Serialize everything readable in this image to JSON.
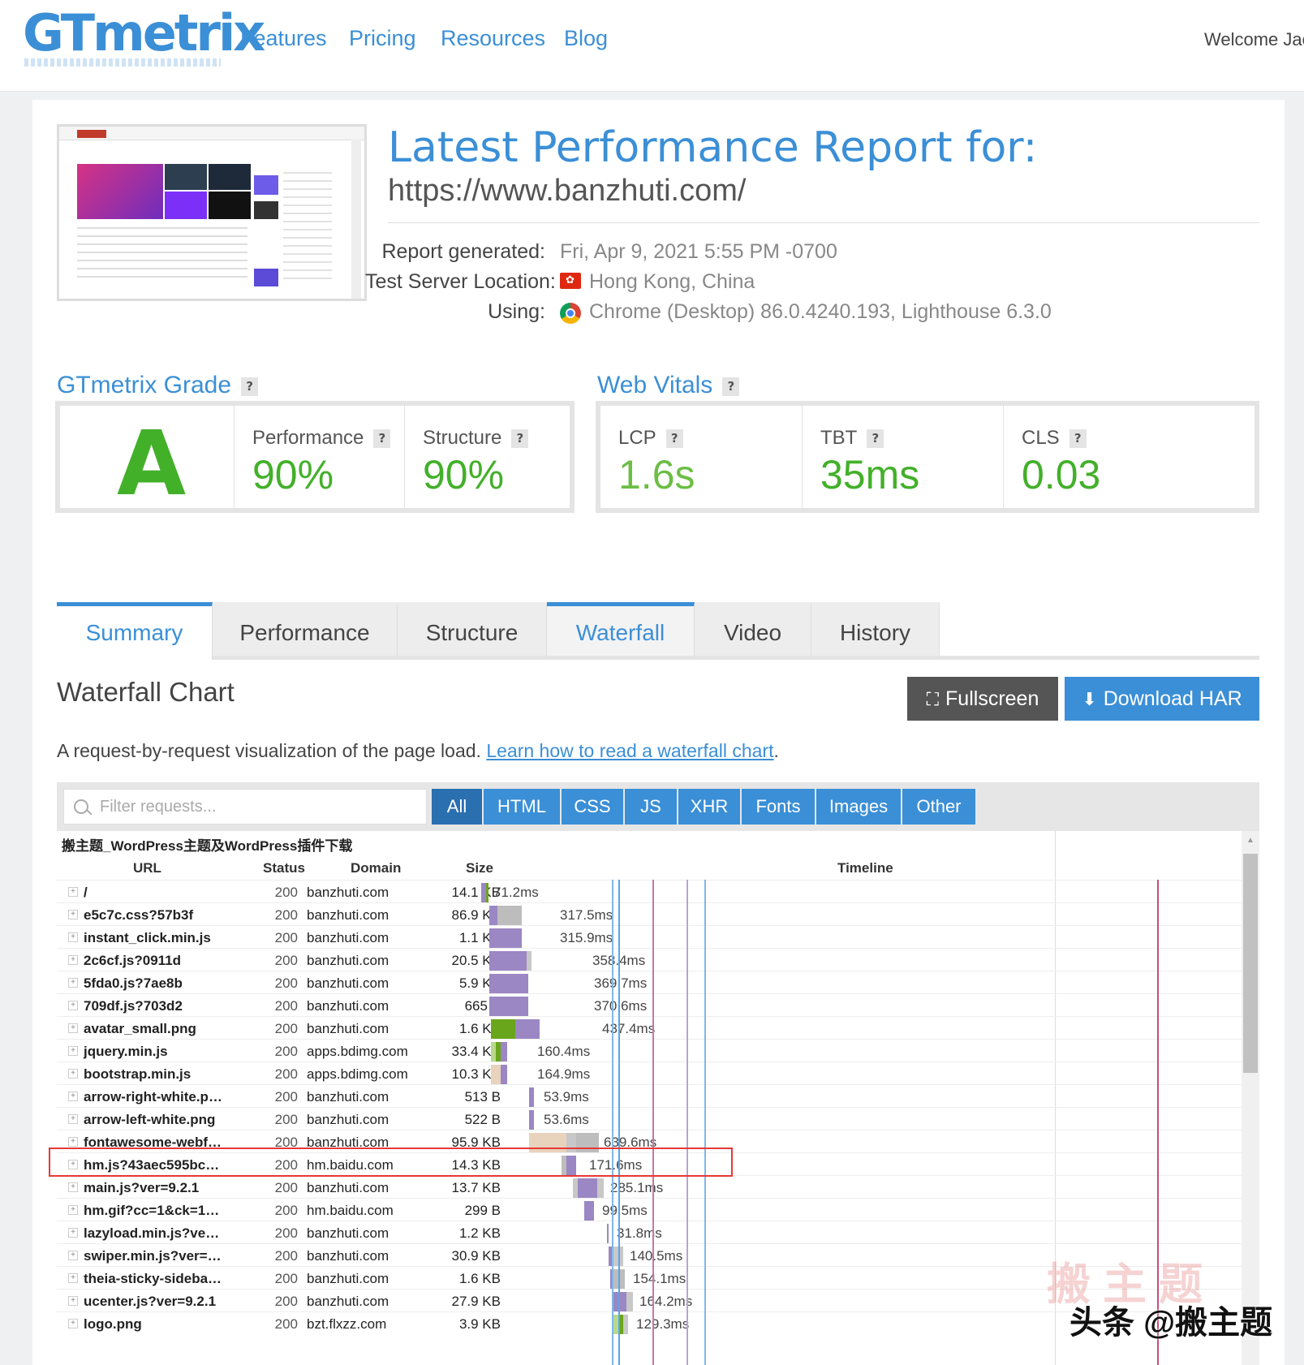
{
  "header": {
    "logo": "GTmetrix",
    "nav": [
      "Features",
      "Pricing",
      "Resources",
      "Blog"
    ],
    "welcome": "Welcome Jac"
  },
  "report": {
    "title": "Latest Performance Report for:",
    "url": "https://www.banzhuti.com/",
    "generated_label": "Report generated:",
    "generated_value": "Fri, Apr 9, 2021 5:55 PM -0700",
    "location_label": "Test Server Location:",
    "location_value": "Hong Kong, China",
    "using_label": "Using:",
    "using_value": "Chrome (Desktop) 86.0.4240.193, Lighthouse 6.3.0"
  },
  "grade": {
    "title": "GTmetrix Grade",
    "letter": "A",
    "performance_label": "Performance",
    "performance_value": "90%",
    "structure_label": "Structure",
    "structure_value": "90%"
  },
  "vitals": {
    "title": "Web Vitals",
    "lcp_label": "LCP",
    "lcp_value": "1.6s",
    "tbt_label": "TBT",
    "tbt_value": "35ms",
    "cls_label": "CLS",
    "cls_value": "0.03"
  },
  "tabs": [
    "Summary",
    "Performance",
    "Structure",
    "Waterfall",
    "Video",
    "History"
  ],
  "waterfall": {
    "title": "Waterfall Chart",
    "fullscreen_label": "Fullscreen",
    "download_label": "Download HAR",
    "description": "A request-by-request visualization of the page load.",
    "learn_link": "Learn how to read a waterfall chart",
    "learn_suffix": ".",
    "filter_placeholder": "Filter requests...",
    "filters": [
      "All",
      "HTML",
      "CSS",
      "JS",
      "XHR",
      "Fonts",
      "Images",
      "Other"
    ],
    "page_title": "搬主题_WordPress主题及WordPress插件下载",
    "headers": {
      "url": "URL",
      "status": "Status",
      "domain": "Domain",
      "size": "Size",
      "timeline": "Timeline"
    },
    "rows": [
      {
        "url": "/",
        "status": "200",
        "domain": "banzhuti.com",
        "size": "14.1 KB",
        "time": "71.2ms"
      },
      {
        "url": "e5c7c.css?57b3f",
        "status": "200",
        "domain": "banzhuti.com",
        "size": "86.9 KB",
        "time": "317.5ms"
      },
      {
        "url": "instant_click.min.js",
        "status": "200",
        "domain": "banzhuti.com",
        "size": "1.1 KB",
        "time": "315.9ms"
      },
      {
        "url": "2c6cf.js?0911d",
        "status": "200",
        "domain": "banzhuti.com",
        "size": "20.5 KB",
        "time": "358.4ms"
      },
      {
        "url": "5fda0.js?7ae8b",
        "status": "200",
        "domain": "banzhuti.com",
        "size": "5.9 KB",
        "time": "369.7ms"
      },
      {
        "url": "709df.js?703d2",
        "status": "200",
        "domain": "banzhuti.com",
        "size": "665 B",
        "time": "370.6ms"
      },
      {
        "url": "avatar_small.png",
        "status": "200",
        "domain": "banzhuti.com",
        "size": "1.6 KB",
        "time": "437.4ms"
      },
      {
        "url": "jquery.min.js",
        "status": "200",
        "domain": "apps.bdimg.com",
        "size": "33.4 KB",
        "time": "160.4ms"
      },
      {
        "url": "bootstrap.min.js",
        "status": "200",
        "domain": "apps.bdimg.com",
        "size": "10.3 KB",
        "time": "164.9ms"
      },
      {
        "url": "arrow-right-white.p…",
        "status": "200",
        "domain": "banzhuti.com",
        "size": "513 B",
        "time": "53.9ms"
      },
      {
        "url": "arrow-left-white.png",
        "status": "200",
        "domain": "banzhuti.com",
        "size": "522 B",
        "time": "53.6ms"
      },
      {
        "url": "fontawesome-webf…",
        "status": "200",
        "domain": "banzhuti.com",
        "size": "95.9 KB",
        "time": "639.6ms"
      },
      {
        "url": "hm.js?43aec595bc…",
        "status": "200",
        "domain": "hm.baidu.com",
        "size": "14.3 KB",
        "time": "171.6ms"
      },
      {
        "url": "main.js?ver=9.2.1",
        "status": "200",
        "domain": "banzhuti.com",
        "size": "13.7 KB",
        "time": "285.1ms"
      },
      {
        "url": "hm.gif?cc=1&ck=1…",
        "status": "200",
        "domain": "hm.baidu.com",
        "size": "299 B",
        "time": "99.5ms"
      },
      {
        "url": "lazyload.min.js?ve…",
        "status": "200",
        "domain": "banzhuti.com",
        "size": "1.2 KB",
        "time": "31.8ms"
      },
      {
        "url": "swiper.min.js?ver=…",
        "status": "200",
        "domain": "banzhuti.com",
        "size": "30.9 KB",
        "time": "140.5ms"
      },
      {
        "url": "theia-sticky-sideba…",
        "status": "200",
        "domain": "banzhuti.com",
        "size": "1.6 KB",
        "time": "154.1ms"
      },
      {
        "url": "ucenter.js?ver=9.2.1",
        "status": "200",
        "domain": "banzhuti.com",
        "size": "27.9 KB",
        "time": "164.2ms"
      },
      {
        "url": "logo.png",
        "status": "200",
        "domain": "bzt.flxzz.com",
        "size": "3.9 KB",
        "time": "129.3ms"
      }
    ]
  },
  "watermark": {
    "logo_text": "搬 主 题",
    "caption": "头条 @搬主题"
  },
  "colors": {
    "accent": "#3b8fd6",
    "good": "#43b02a",
    "highlight": "#e53935"
  }
}
